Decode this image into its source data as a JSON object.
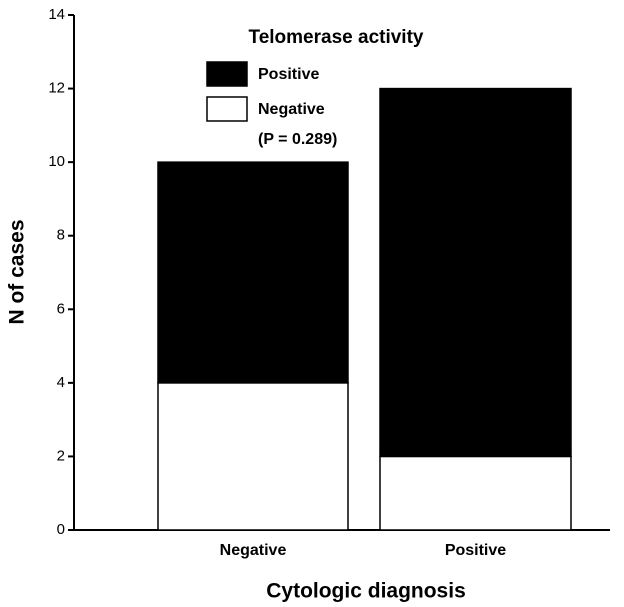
{
  "chart_data": {
    "type": "stacked_bar",
    "title": "Telomerase activity",
    "annotation": "(P = 0.289)",
    "x_label": "Cytologic diagnosis",
    "y_label": "N of cases",
    "categories": [
      "Negative",
      "Positive"
    ],
    "series": [
      {
        "name": "Negative",
        "color": "#ffffff",
        "values": [
          4,
          2
        ]
      },
      {
        "name": "Positive",
        "color": "#000000",
        "values": [
          6,
          10
        ]
      }
    ],
    "ylim": [
      0,
      14
    ],
    "yticks": [
      0,
      2,
      4,
      6,
      8,
      10,
      12,
      14
    ],
    "grid": false,
    "legend": "top"
  }
}
